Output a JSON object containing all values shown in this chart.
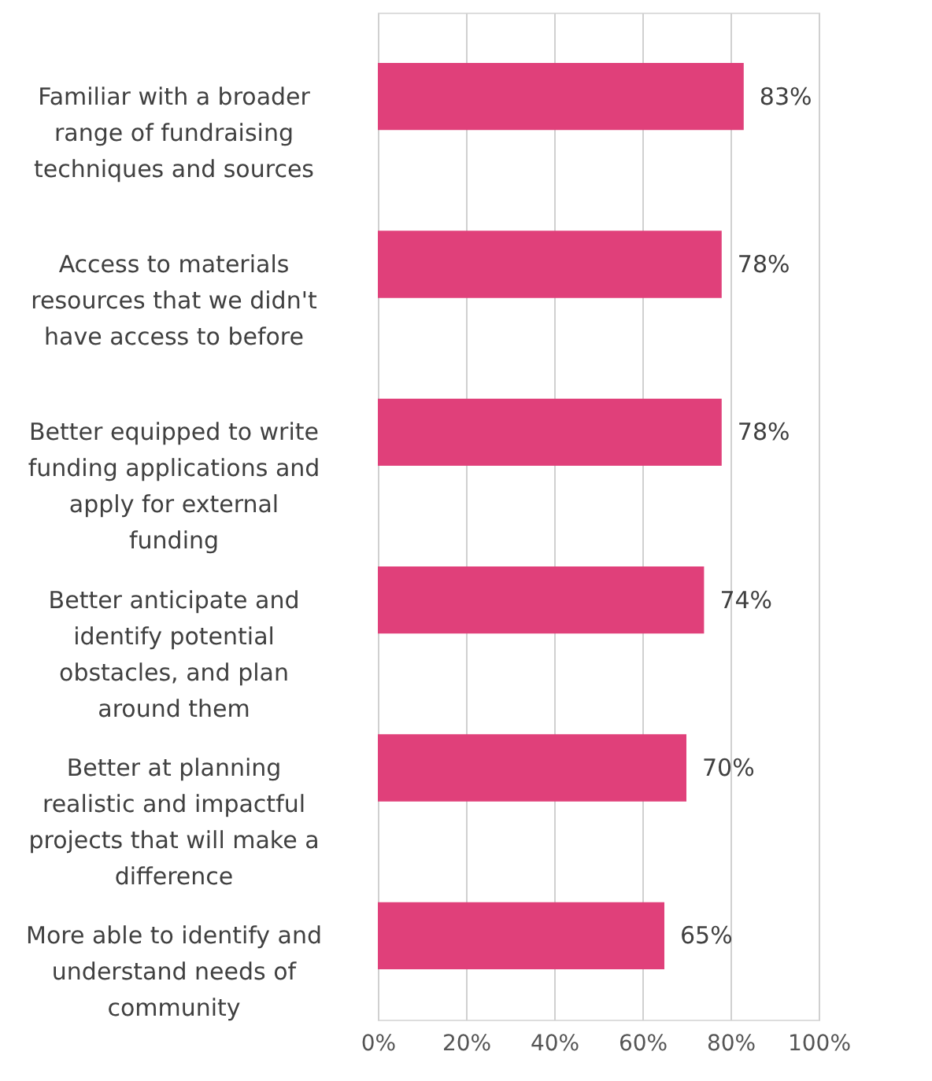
{
  "chart_data": {
    "type": "bar",
    "orientation": "horizontal",
    "categories": [
      "Familiar with a broader range of fundraising techniques and sources",
      "Access to materials resources that we didn't have access to before",
      "Better equipped to write funding applications and apply for external funding",
      "Better anticipate and identify potential obstacles, and plan around them",
      "Better at planning realistic and impactful projects that will make a difference",
      "More able to identify and understand needs of community"
    ],
    "values": [
      83,
      78,
      78,
      74,
      70,
      65
    ],
    "color": "#e0407a",
    "value_labels": [
      "83%",
      "78%",
      "78%",
      "74%",
      "70%",
      "65%"
    ],
    "xlim": [
      0,
      100
    ],
    "xticks": [
      {
        "value": 0,
        "label": "0%"
      },
      {
        "value": 20,
        "label": "20%"
      },
      {
        "value": 40,
        "label": "40%"
      },
      {
        "value": 60,
        "label": "60%"
      },
      {
        "value": 80,
        "label": "80%"
      },
      {
        "value": 100,
        "label": "100%"
      }
    ],
    "grid": "x"
  }
}
